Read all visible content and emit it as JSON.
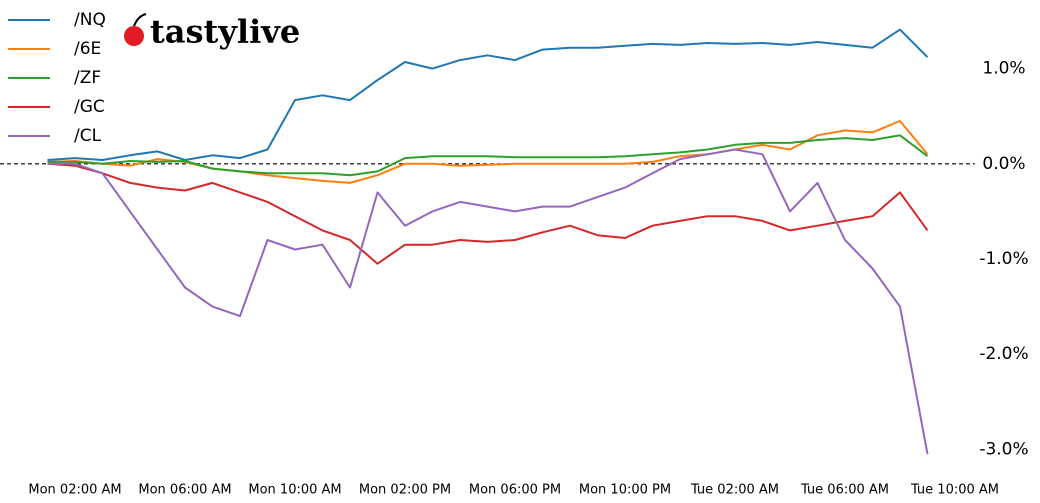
{
  "chart_data": {
    "type": "line",
    "annotations": [
      "tastylive"
    ],
    "x": [
      1,
      2,
      3,
      4,
      5,
      6,
      7,
      8,
      9,
      10,
      11,
      12,
      13,
      14,
      15,
      16,
      17,
      18,
      19,
      20,
      21,
      22,
      23,
      24,
      25,
      26,
      27,
      28,
      29,
      30,
      31,
      32,
      33
    ],
    "xlim": [
      0,
      35
    ],
    "xticks": [
      {
        "value": 2,
        "label": "Mon 02:00 AM"
      },
      {
        "value": 6,
        "label": "Mon 06:00 AM"
      },
      {
        "value": 10,
        "label": "Mon 10:00 AM"
      },
      {
        "value": 14,
        "label": "Mon 02:00 PM"
      },
      {
        "value": 18,
        "label": "Mon 06:00 PM"
      },
      {
        "value": 22,
        "label": "Mon 10:00 PM"
      },
      {
        "value": 26,
        "label": "Tue 02:00 AM"
      },
      {
        "value": 30,
        "label": "Tue 06:00 AM"
      },
      {
        "value": 34,
        "label": "Tue 10:00 AM"
      }
    ],
    "ylim": [
      -3.15,
      1.57
    ],
    "yticks": [
      {
        "value": 1,
        "label": "1.0%"
      },
      {
        "value": 0,
        "label": "0.0%"
      },
      {
        "value": -1,
        "label": "-1.0%"
      },
      {
        "value": -2,
        "label": "-2.0%"
      },
      {
        "value": -3,
        "label": "-3.0%"
      }
    ],
    "reference_line": 0,
    "grid": false,
    "legend": "upper left",
    "series": [
      {
        "name": "/NQ",
        "color": "#1f77b4",
        "values": [
          0.04,
          0.06,
          0.04,
          0.09,
          0.13,
          0.04,
          0.09,
          0.06,
          0.15,
          0.67,
          0.72,
          0.67,
          0.88,
          1.07,
          1.0,
          1.09,
          1.14,
          1.09,
          1.2,
          1.22,
          1.22,
          1.24,
          1.26,
          1.25,
          1.27,
          1.26,
          1.27,
          1.25,
          1.28,
          1.25,
          1.22,
          1.41,
          1.12
        ]
      },
      {
        "name": "/6E",
        "color": "#ff7f0e",
        "values": [
          0.02,
          0.03,
          0.0,
          -0.02,
          0.05,
          0.02,
          -0.05,
          -0.08,
          -0.12,
          -0.15,
          -0.18,
          -0.2,
          -0.12,
          0.0,
          0.0,
          -0.02,
          -0.01,
          0.0,
          0.0,
          0.0,
          0.0,
          0.0,
          0.02,
          0.08,
          0.1,
          0.15,
          0.2,
          0.15,
          0.3,
          0.35,
          0.33,
          0.45,
          0.1
        ]
      },
      {
        "name": "/ZF",
        "color": "#2ca02c",
        "values": [
          0.02,
          0.02,
          0.0,
          0.03,
          0.02,
          0.03,
          -0.05,
          -0.08,
          -0.1,
          -0.1,
          -0.1,
          -0.12,
          -0.08,
          0.06,
          0.08,
          0.08,
          0.08,
          0.07,
          0.07,
          0.07,
          0.07,
          0.08,
          0.1,
          0.12,
          0.15,
          0.2,
          0.22,
          0.22,
          0.25,
          0.27,
          0.25,
          0.3,
          0.08
        ]
      },
      {
        "name": "/GC",
        "color": "#d62728",
        "values": [
          0.0,
          -0.02,
          -0.1,
          -0.2,
          -0.25,
          -0.28,
          -0.2,
          -0.3,
          -0.4,
          -0.55,
          -0.7,
          -0.8,
          -1.05,
          -0.85,
          -0.85,
          -0.8,
          -0.82,
          -0.8,
          -0.72,
          -0.65,
          -0.75,
          -0.78,
          -0.65,
          -0.6,
          -0.55,
          -0.55,
          -0.6,
          -0.7,
          -0.65,
          -0.6,
          -0.55,
          -0.3,
          -0.7
        ]
      },
      {
        "name": "/CL",
        "color": "#9467bd",
        "values": [
          0.0,
          0.0,
          -0.1,
          -0.5,
          -0.9,
          -1.3,
          -1.5,
          -1.6,
          -0.8,
          -0.9,
          -0.85,
          -1.3,
          -0.3,
          -0.65,
          -0.5,
          -0.4,
          -0.45,
          -0.5,
          -0.45,
          -0.45,
          -0.35,
          -0.25,
          -0.1,
          0.05,
          0.1,
          0.15,
          0.1,
          -0.5,
          -0.2,
          -0.8,
          -1.1,
          -1.5,
          -3.05
        ]
      }
    ]
  }
}
